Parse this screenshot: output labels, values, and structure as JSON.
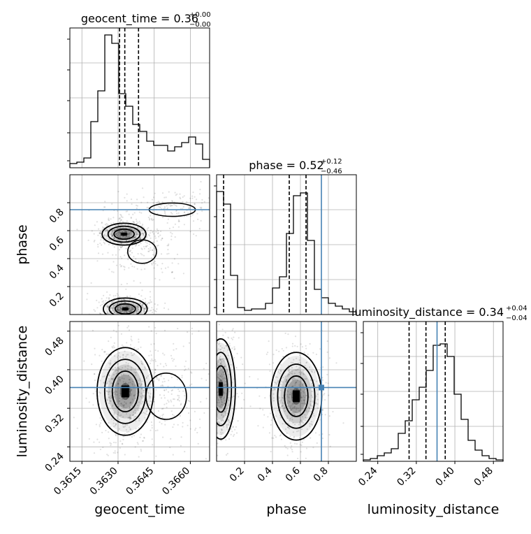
{
  "chart_data": {
    "type": "corner",
    "parameters": [
      {
        "name": "geocent_time",
        "title_value": "0.36",
        "title_plus": "+0.00",
        "title_minus": "−0.00",
        "range": [
          0.361,
          0.3668
        ],
        "ticks": [
          0.3615,
          0.363,
          0.3645,
          0.366
        ],
        "tick_labels": [
          "0.3615",
          "0.3630",
          "0.3645",
          "0.3660"
        ],
        "quantiles": [
          0.36306,
          0.36328,
          0.36385
        ],
        "truth": null,
        "hist": [
          0.03,
          0.04,
          0.07,
          0.33,
          0.55,
          0.95,
          0.89,
          0.53,
          0.44,
          0.31,
          0.26,
          0.19,
          0.16,
          0.16,
          0.12,
          0.15,
          0.18,
          0.22,
          0.17,
          0.06
        ]
      },
      {
        "name": "phase",
        "title_value": "0.52",
        "title_plus": "+0.12",
        "title_minus": "−0.46",
        "range": [
          0.0,
          1.0
        ],
        "ticks": [
          0.2,
          0.4,
          0.6,
          0.8
        ],
        "tick_labels": [
          "0.2",
          "0.4",
          "0.6",
          "0.8"
        ],
        "quantiles": [
          0.05,
          0.52,
          0.64
        ],
        "truth": 0.75,
        "hist": [
          0.88,
          0.79,
          0.28,
          0.05,
          0.03,
          0.04,
          0.04,
          0.08,
          0.19,
          0.27,
          0.58,
          0.85,
          0.87,
          0.53,
          0.18,
          0.12,
          0.08,
          0.06,
          0.04,
          0.02
        ]
      },
      {
        "name": "luminosity_distance",
        "title_value": "0.34",
        "title_plus": "+0.04",
        "title_minus": "−0.04",
        "range": [
          0.21,
          0.5
        ],
        "ticks": [
          0.24,
          0.32,
          0.4,
          0.48
        ],
        "tick_labels": [
          "0.24",
          "0.32",
          "0.40",
          "0.48"
        ],
        "quantiles": [
          0.305,
          0.34,
          0.38
        ],
        "truth": 0.363,
        "hist": [
          0.01,
          0.02,
          0.04,
          0.06,
          0.09,
          0.2,
          0.29,
          0.44,
          0.53,
          0.65,
          0.83,
          0.84,
          0.75,
          0.48,
          0.3,
          0.15,
          0.08,
          0.04,
          0.02,
          0.01
        ]
      }
    ],
    "panels_2d": [
      {
        "x": "geocent_time",
        "y": "phase",
        "horizontal_truth": 0.75,
        "clusters": [
          {
            "cx": 0.36325,
            "cy": 0.575,
            "sx": 0.00035,
            "sy": 0.03,
            "weight": 1.0
          },
          {
            "cx": 0.3633,
            "cy": 0.04,
            "sx": 0.00035,
            "sy": 0.03,
            "weight": 1.0
          },
          {
            "cx": 0.36525,
            "cy": 0.75,
            "sx": 0.0008,
            "sy": 0.04,
            "weight": 0.35
          },
          {
            "cx": 0.364,
            "cy": 0.45,
            "sx": 0.0005,
            "sy": 0.07,
            "weight": 0.25
          }
        ]
      },
      {
        "x": "geocent_time",
        "y": "luminosity_distance",
        "horizontal_truth": 0.363,
        "clusters": [
          {
            "cx": 0.3633,
            "cy": 0.355,
            "sx": 0.00045,
            "sy": 0.035,
            "weight": 1.0
          },
          {
            "cx": 0.365,
            "cy": 0.345,
            "sx": 0.0007,
            "sy": 0.04,
            "weight": 0.4
          }
        ]
      },
      {
        "x": "phase",
        "y": "luminosity_distance",
        "vertical_truth": 0.75,
        "horizontal_truth": 0.363,
        "clusters": [
          {
            "cx": 0.57,
            "cy": 0.345,
            "sx": 0.07,
            "sy": 0.035,
            "weight": 1.0
          },
          {
            "cx": 0.03,
            "cy": 0.36,
            "sx": 0.04,
            "sy": 0.04,
            "weight": 0.85
          }
        ]
      }
    ]
  },
  "colors": {
    "truth": "#4682b4",
    "hist": "#000000",
    "contour": "#000000",
    "grid": "#b0b0b0"
  }
}
